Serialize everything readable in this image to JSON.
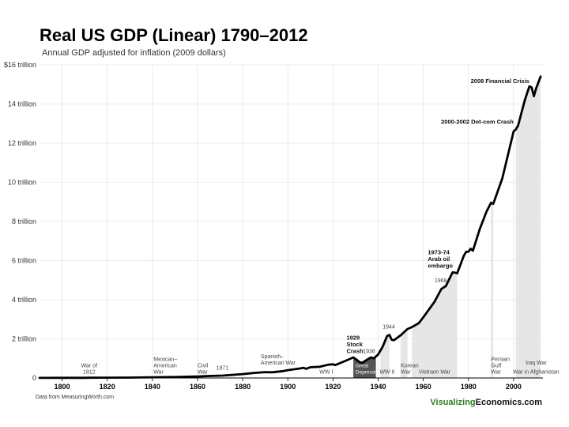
{
  "title": {
    "main": "Real US GDP (Linear)",
    "years": "1790–2012"
  },
  "subtitle": "Annual GDP adjusted for inflation (2009 dollars)",
  "source": "Data from MeasuringWorth.com",
  "brand": {
    "part1": "Visualizing",
    "part2": "Economics.com",
    "color1": "#2e7d1e",
    "color2": "#111111"
  },
  "colors": {
    "line": "#000000",
    "shade": "#e6e6e6",
    "depression": "#555555",
    "grid": "#dddddd"
  },
  "chart_data": {
    "type": "line",
    "title": "Real US GDP (Linear) 1790–2012",
    "subtitle": "Annual GDP adjusted for inflation (2009 dollars)",
    "xlim": [
      1790,
      2013
    ],
    "ylim": [
      0,
      16
    ],
    "y_unit": "trillion 2009 dollars",
    "x_ticks": [
      1800,
      1820,
      1840,
      1860,
      1880,
      1900,
      1920,
      1940,
      1960,
      1980,
      2000
    ],
    "y_ticks": [
      {
        "value": 0,
        "label": "0"
      },
      {
        "value": 2,
        "label": "2 trillion"
      },
      {
        "value": 4,
        "label": "4 trillion"
      },
      {
        "value": 6,
        "label": "6 trillion"
      },
      {
        "value": 8,
        "label": "8 trillion"
      },
      {
        "value": 10,
        "label": "10 trillion"
      },
      {
        "value": 12,
        "label": "12 trillion"
      },
      {
        "value": 14,
        "label": "14 trillion"
      },
      {
        "value": 16,
        "label": "$16 trillion"
      }
    ],
    "grid": true,
    "series": [
      {
        "values": [
          [
            1790,
            0.004
          ],
          [
            1800,
            0.007
          ],
          [
            1810,
            0.01
          ],
          [
            1812,
            0.012
          ],
          [
            1820,
            0.015
          ],
          [
            1830,
            0.022
          ],
          [
            1840,
            0.035
          ],
          [
            1846,
            0.045
          ],
          [
            1850,
            0.05
          ],
          [
            1861,
            0.08
          ],
          [
            1865,
            0.1
          ],
          [
            1871,
            0.12
          ],
          [
            1880,
            0.2
          ],
          [
            1885,
            0.26
          ],
          [
            1890,
            0.3
          ],
          [
            1893,
            0.29
          ],
          [
            1898,
            0.35
          ],
          [
            1900,
            0.4
          ],
          [
            1905,
            0.48
          ],
          [
            1907,
            0.52
          ],
          [
            1908,
            0.47
          ],
          [
            1910,
            0.55
          ],
          [
            1914,
            0.57
          ],
          [
            1918,
            0.68
          ],
          [
            1920,
            0.7
          ],
          [
            1921,
            0.66
          ],
          [
            1925,
            0.85
          ],
          [
            1929,
            1.05
          ],
          [
            1930,
            0.97
          ],
          [
            1932,
            0.79
          ],
          [
            1933,
            0.78
          ],
          [
            1936,
            1.0
          ],
          [
            1937,
            1.05
          ],
          [
            1938,
            1.0
          ],
          [
            1940,
            1.2
          ],
          [
            1942,
            1.6
          ],
          [
            1944,
            2.15
          ],
          [
            1945,
            2.2
          ],
          [
            1946,
            1.95
          ],
          [
            1947,
            1.93
          ],
          [
            1950,
            2.18
          ],
          [
            1953,
            2.5
          ],
          [
            1955,
            2.6
          ],
          [
            1958,
            2.8
          ],
          [
            1960,
            3.1
          ],
          [
            1965,
            3.9
          ],
          [
            1968,
            4.55
          ],
          [
            1970,
            4.7
          ],
          [
            1973,
            5.4
          ],
          [
            1974,
            5.38
          ],
          [
            1975,
            5.35
          ],
          [
            1978,
            6.25
          ],
          [
            1979,
            6.45
          ],
          [
            1980,
            6.45
          ],
          [
            1981,
            6.6
          ],
          [
            1982,
            6.5
          ],
          [
            1985,
            7.6
          ],
          [
            1988,
            8.5
          ],
          [
            1990,
            8.95
          ],
          [
            1991,
            8.9
          ],
          [
            1995,
            10.2
          ],
          [
            2000,
            12.6
          ],
          [
            2001,
            12.7
          ],
          [
            2002,
            12.9
          ],
          [
            2005,
            14.2
          ],
          [
            2007,
            14.9
          ],
          [
            2008,
            14.85
          ],
          [
            2009,
            14.4
          ],
          [
            2010,
            14.8
          ],
          [
            2012,
            15.4
          ]
        ]
      }
    ],
    "shaded_periods": [
      {
        "label": "Great Depression",
        "start": 1929,
        "end": 1939,
        "style": "dark"
      },
      {
        "label": "WW II",
        "start": 1941,
        "end": 1945,
        "style": "light"
      },
      {
        "label": "Korean War",
        "start": 1950,
        "end": 1953,
        "style": "light"
      },
      {
        "label": "Vietnam War",
        "start": 1955,
        "end": 1975,
        "style": "light"
      },
      {
        "label": "Persian Gulf War",
        "start": 1990,
        "end": 1991,
        "style": "light"
      },
      {
        "label": "Iraq War",
        "start": 2003,
        "end": 2011,
        "style": "light"
      },
      {
        "label": "War in Afghanistan",
        "start": 2001,
        "end": 2012,
        "style": "light"
      }
    ],
    "annotations": [
      {
        "lines": [
          "War of",
          "1812"
        ],
        "x": 1812,
        "y": 0.15,
        "style": "normal",
        "anchor": "middle"
      },
      {
        "lines": [
          "Mexican–",
          "American",
          "War"
        ],
        "x": 1840.5,
        "y": 0.15,
        "style": "normal",
        "anchor": "start"
      },
      {
        "lines": [
          "Civil",
          "War"
        ],
        "x": 1860,
        "y": 0.15,
        "style": "normal",
        "anchor": "start"
      },
      {
        "lines": [
          "1871"
        ],
        "x": 1871,
        "y": 0.35,
        "style": "normal",
        "anchor": "middle"
      },
      {
        "lines": [
          "Spanish–",
          "American War"
        ],
        "x": 1888,
        "y": 0.6,
        "style": "normal",
        "anchor": "start"
      },
      {
        "lines": [
          "WW I"
        ],
        "x": 1917,
        "y": 0.15,
        "style": "normal",
        "anchor": "middle"
      },
      {
        "lines": [
          "1929",
          "Stock",
          "Crash"
        ],
        "x": 1926,
        "y": 1.2,
        "style": "bold",
        "anchor": "start"
      },
      {
        "lines": [
          "1936"
        ],
        "x": 1936,
        "y": 1.2,
        "style": "normal",
        "anchor": "middle"
      },
      {
        "lines": [
          "Great",
          "Depression"
        ],
        "x": 1930,
        "y": 0.15,
        "style": "white",
        "anchor": "start"
      },
      {
        "lines": [
          "WW II"
        ],
        "x": 1944,
        "y": 0.15,
        "style": "normal",
        "anchor": "middle"
      },
      {
        "lines": [
          "1944"
        ],
        "x": 1942,
        "y": 2.45,
        "style": "normal",
        "anchor": "start"
      },
      {
        "lines": [
          "Korean",
          "War"
        ],
        "x": 1950,
        "y": 0.15,
        "style": "normal",
        "anchor": "start"
      },
      {
        "lines": [
          "Vietnam War"
        ],
        "x": 1965,
        "y": 0.15,
        "style": "normal",
        "anchor": "middle"
      },
      {
        "lines": [
          "1968"
        ],
        "x": 1965,
        "y": 4.8,
        "style": "normal",
        "anchor": "start"
      },
      {
        "lines": [
          "1973-74",
          "Arab oil",
          "embargo"
        ],
        "x": 1962,
        "y": 5.55,
        "style": "bold",
        "anchor": "start"
      },
      {
        "lines": [
          "Persian",
          "Gulf",
          "War"
        ],
        "x": 1990,
        "y": 0.15,
        "style": "normal",
        "anchor": "start"
      },
      {
        "lines": [
          "Iraq War"
        ],
        "x": 2010,
        "y": 0.6,
        "style": "normal",
        "anchor": "middle"
      },
      {
        "lines": [
          "War in Afghanistan"
        ],
        "x": 2010,
        "y": 0.15,
        "style": "normal",
        "anchor": "middle"
      },
      {
        "lines": [
          "2000-2002 Dot-com Crash"
        ],
        "x": 2000,
        "y": 12.9,
        "style": "bold",
        "anchor": "end"
      },
      {
        "lines": [
          "2008 Financial Crisis"
        ],
        "x": 2007,
        "y": 15.0,
        "style": "bold",
        "anchor": "end"
      }
    ]
  }
}
